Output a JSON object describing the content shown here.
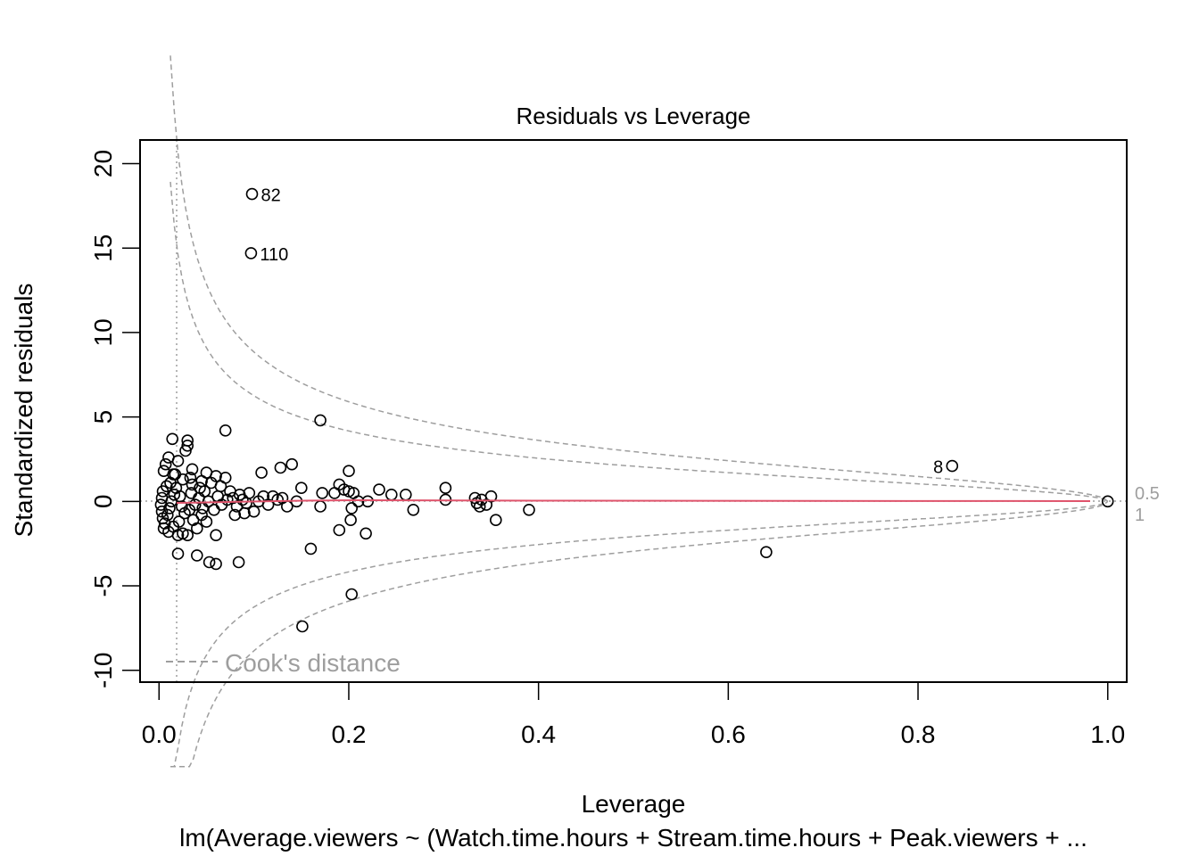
{
  "chart_data": {
    "type": "scatter",
    "title": "Residuals vs Leverage",
    "xlabel": "Leverage",
    "ylabel": "Standardized residuals",
    "subtitle": "lm(Average.viewers ~ (Watch.time.hours + Stream.time.hours + Peak.viewers + ...",
    "xlim": [
      -0.02,
      1.02
    ],
    "ylim": [
      -10.7,
      21.4
    ],
    "x_ticks": [
      0.0,
      0.2,
      0.4,
      0.6,
      0.8,
      1.0
    ],
    "x_tick_labels": [
      "0.0",
      "0.2",
      "0.4",
      "0.6",
      "0.8",
      "1.0"
    ],
    "y_ticks": [
      -10,
      -5,
      0,
      5,
      10,
      15,
      20
    ],
    "y_tick_labels": [
      "-10",
      "-5",
      "0",
      "5",
      "10",
      "15",
      "20"
    ],
    "grid": false,
    "legend": {
      "label": "Cook's distance",
      "placement": "bottom-left"
    },
    "cooks_contour_labels": [
      "0.5",
      "1"
    ],
    "cooks_levels": [
      0.5,
      1
    ],
    "point_labels": [
      {
        "text": "82",
        "x": 0.098,
        "y": 18.2
      },
      {
        "text": "110",
        "x": 0.097,
        "y": 14.7
      },
      {
        "text": "8",
        "x": 0.836,
        "y": 2.1
      }
    ],
    "points": [
      [
        0.098,
        18.2
      ],
      [
        0.097,
        14.7
      ],
      [
        0.836,
        2.1
      ],
      [
        1.0,
        0.0
      ],
      [
        0.64,
        -3.0
      ],
      [
        0.151,
        -7.4
      ],
      [
        0.203,
        -5.5
      ],
      [
        0.17,
        4.8
      ],
      [
        0.07,
        4.2
      ],
      [
        0.014,
        3.7
      ],
      [
        0.03,
        3.6
      ],
      [
        0.03,
        3.3
      ],
      [
        0.028,
        3.0
      ],
      [
        0.01,
        2.6
      ],
      [
        0.02,
        2.4
      ],
      [
        0.14,
        2.2
      ],
      [
        0.128,
        2.0
      ],
      [
        0.2,
        1.8
      ],
      [
        0.108,
        1.7
      ],
      [
        0.035,
        1.9
      ],
      [
        0.05,
        1.7
      ],
      [
        0.007,
        2.2
      ],
      [
        0.005,
        1.8
      ],
      [
        0.015,
        1.6
      ],
      [
        0.06,
        1.5
      ],
      [
        0.07,
        1.4
      ],
      [
        0.19,
        1.0
      ],
      [
        0.172,
        0.5
      ],
      [
        0.185,
        0.5
      ],
      [
        0.195,
        0.7
      ],
      [
        0.2,
        0.6
      ],
      [
        0.205,
        0.5
      ],
      [
        0.232,
        0.7
      ],
      [
        0.245,
        0.4
      ],
      [
        0.26,
        0.4
      ],
      [
        0.15,
        0.8
      ],
      [
        0.13,
        0.2
      ],
      [
        0.12,
        0.3
      ],
      [
        0.11,
        0.3
      ],
      [
        0.17,
        -0.3
      ],
      [
        0.22,
        0.0
      ],
      [
        0.21,
        0.0
      ],
      [
        0.203,
        -0.4
      ],
      [
        0.202,
        -1.1
      ],
      [
        0.19,
        -1.7
      ],
      [
        0.218,
        -1.9
      ],
      [
        0.268,
        -0.5
      ],
      [
        0.16,
        -2.8
      ],
      [
        0.302,
        0.8
      ],
      [
        0.302,
        0.1
      ],
      [
        0.333,
        0.2
      ],
      [
        0.335,
        -0.1
      ],
      [
        0.338,
        -0.3
      ],
      [
        0.34,
        0.1
      ],
      [
        0.345,
        -0.2
      ],
      [
        0.35,
        0.3
      ],
      [
        0.355,
        -1.1
      ],
      [
        0.39,
        -0.5
      ],
      [
        0.02,
        -3.1
      ],
      [
        0.04,
        -3.2
      ],
      [
        0.053,
        -3.6
      ],
      [
        0.06,
        -3.7
      ],
      [
        0.084,
        -3.6
      ],
      [
        0.06,
        -2.0
      ],
      [
        0.03,
        -2.0
      ],
      [
        0.02,
        -2.0
      ],
      [
        0.01,
        -1.8
      ],
      [
        0.005,
        -1.6
      ],
      [
        0.015,
        -1.5
      ],
      [
        0.025,
        -1.9
      ],
      [
        0.04,
        -1.6
      ],
      [
        0.05,
        -1.2
      ],
      [
        0.08,
        -0.8
      ],
      [
        0.09,
        -0.7
      ],
      [
        0.1,
        -0.6
      ],
      [
        0.075,
        0.6
      ],
      [
        0.085,
        0.4
      ],
      [
        0.095,
        0.5
      ],
      [
        0.105,
        0.0
      ],
      [
        0.115,
        -0.2
      ],
      [
        0.125,
        0.1
      ],
      [
        0.135,
        -0.3
      ],
      [
        0.145,
        0.0
      ],
      [
        0.055,
        1.1
      ],
      [
        0.065,
        0.9
      ],
      [
        0.045,
        1.2
      ],
      [
        0.035,
        1.0
      ],
      [
        0.025,
        1.3
      ],
      [
        0.012,
        1.1
      ],
      [
        0.008,
        0.9
      ],
      [
        0.004,
        0.6
      ],
      [
        0.003,
        0.2
      ],
      [
        0.002,
        -0.2
      ],
      [
        0.003,
        -0.6
      ],
      [
        0.004,
        -1.0
      ],
      [
        0.006,
        -1.3
      ],
      [
        0.009,
        -0.8
      ],
      [
        0.011,
        -0.4
      ],
      [
        0.013,
        0.0
      ],
      [
        0.016,
        0.4
      ],
      [
        0.018,
        0.8
      ],
      [
        0.022,
        0.3
      ],
      [
        0.024,
        -0.3
      ],
      [
        0.027,
        -0.7
      ],
      [
        0.032,
        -0.5
      ],
      [
        0.034,
        0.5
      ],
      [
        0.038,
        -0.2
      ],
      [
        0.042,
        0.2
      ],
      [
        0.046,
        -0.4
      ],
      [
        0.048,
        0.6
      ],
      [
        0.052,
        0.0
      ],
      [
        0.058,
        -0.5
      ],
      [
        0.062,
        0.3
      ],
      [
        0.066,
        -0.2
      ],
      [
        0.072,
        0.1
      ],
      [
        0.078,
        0.2
      ],
      [
        0.082,
        -0.3
      ],
      [
        0.088,
        0.1
      ],
      [
        0.092,
        -0.1
      ],
      [
        0.045,
        -0.8
      ],
      [
        0.036,
        -1.1
      ],
      [
        0.021,
        -1.2
      ],
      [
        0.017,
        1.6
      ],
      [
        0.033,
        1.4
      ],
      [
        0.043,
        0.8
      ]
    ]
  }
}
